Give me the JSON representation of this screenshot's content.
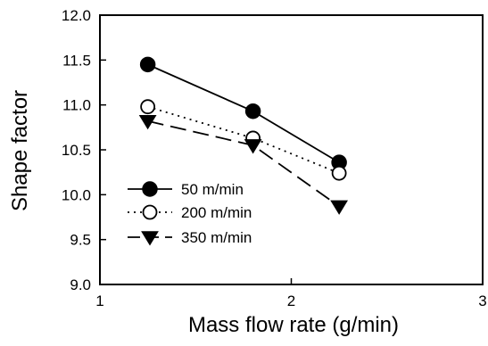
{
  "chart_data": {
    "type": "line",
    "title": "",
    "xlabel": "Mass flow rate (g/min)",
    "ylabel": "Shape factor",
    "xlim": [
      1,
      3
    ],
    "ylim": [
      9.0,
      12.0
    ],
    "xticks": [
      1,
      2,
      3
    ],
    "xtick_labels": [
      "1",
      "2",
      "3"
    ],
    "yticks": [
      9.0,
      9.5,
      10.0,
      10.5,
      11.0,
      11.5,
      12.0
    ],
    "ytick_labels": [
      "9.0",
      "9.5",
      "10.0",
      "10.5",
      "11.0",
      "11.5",
      "12.0"
    ],
    "grid": false,
    "legend_position": "lower-left",
    "series": [
      {
        "name": "50 m/min",
        "marker": "filled-circle",
        "line_style": "solid",
        "x": [
          1.25,
          1.8,
          2.25
        ],
        "y": [
          11.45,
          10.93,
          10.36
        ]
      },
      {
        "name": "200 m/min",
        "marker": "open-circle",
        "line_style": "dotted",
        "x": [
          1.25,
          1.8,
          2.25
        ],
        "y": [
          10.98,
          10.63,
          10.24
        ]
      },
      {
        "name": "350 m/min",
        "marker": "filled-triangle-down",
        "line_style": "dashed",
        "x": [
          1.25,
          1.8,
          2.25
        ],
        "y": [
          10.82,
          10.55,
          9.87
        ]
      }
    ]
  }
}
